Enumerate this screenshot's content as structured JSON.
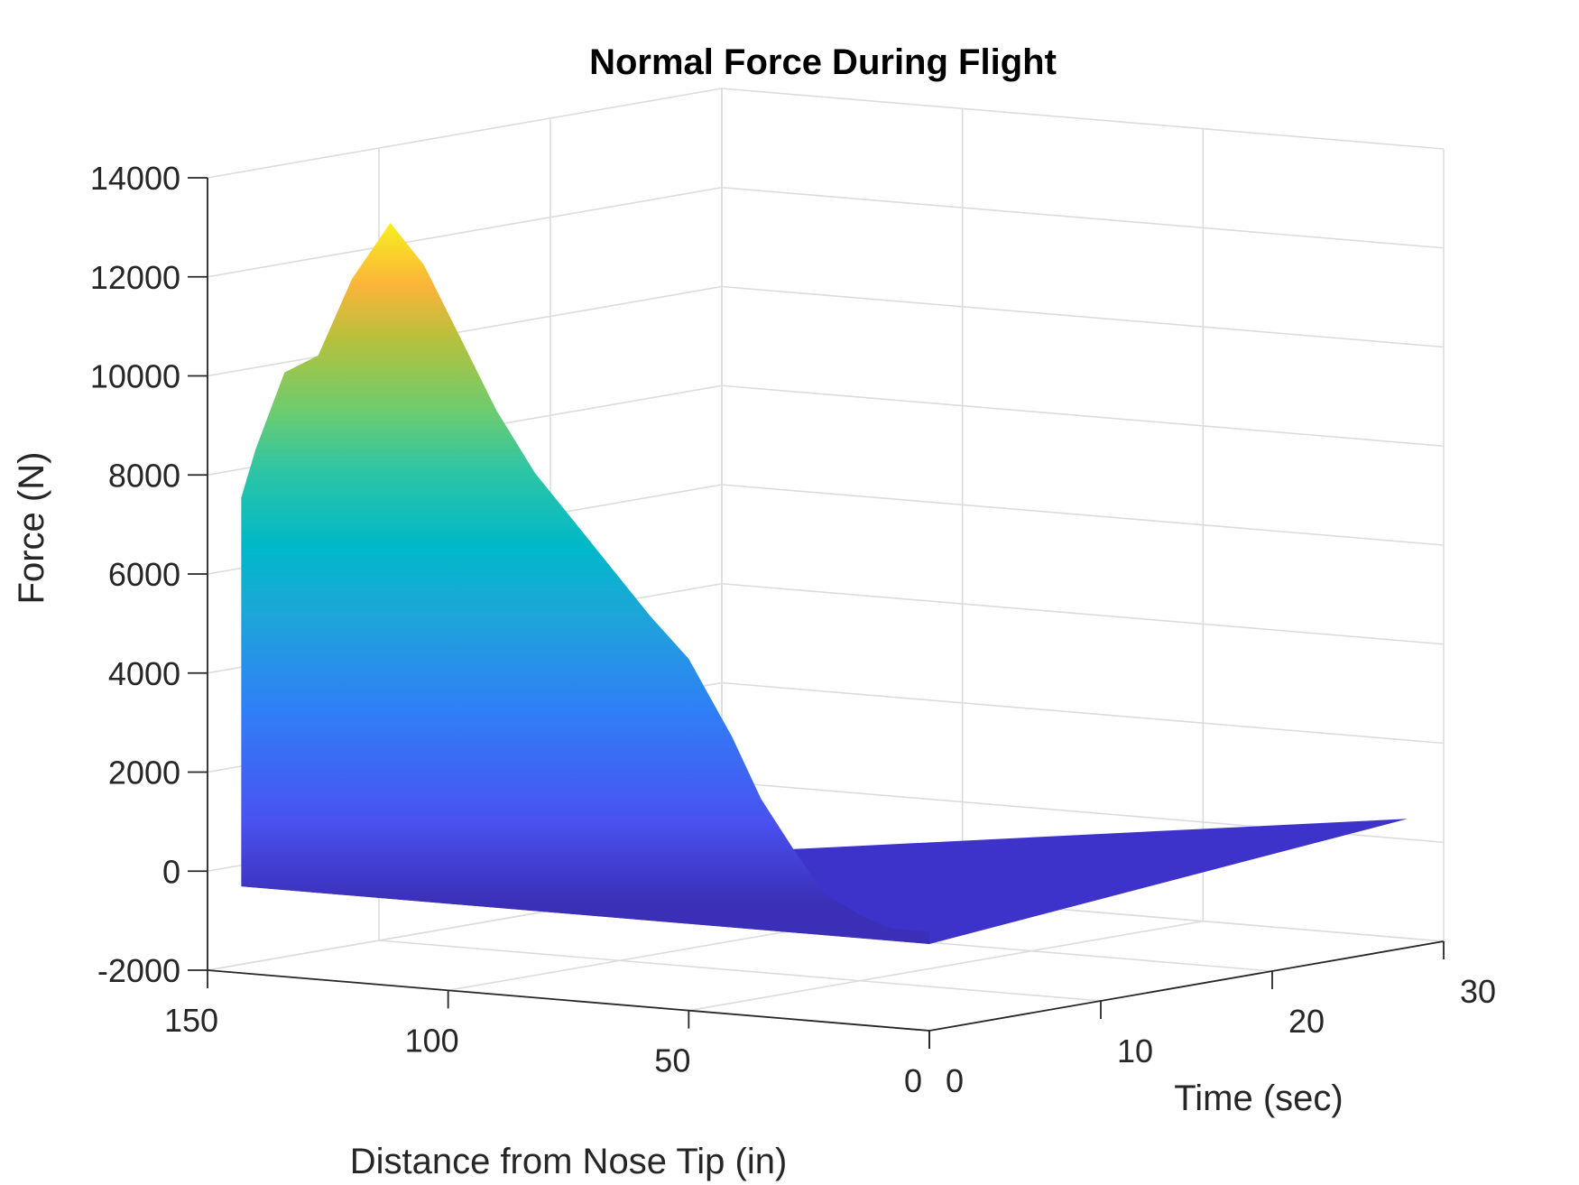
{
  "chart_data": {
    "type": "surface",
    "title": "Normal Force During Flight",
    "xlabel": "Distance from Nose Tip (in)",
    "ylabel": "Time (sec)",
    "zlabel": "Force (N)",
    "x_ticks": [
      "150",
      "100",
      "50",
      "0"
    ],
    "y_ticks": [
      "0",
      "10",
      "20",
      "30"
    ],
    "z_ticks": [
      "14000",
      "12000",
      "10000",
      "8000",
      "6000",
      "4000",
      "2000",
      "0",
      "-2000"
    ],
    "xlim": [
      0,
      150
    ],
    "ylim": [
      0,
      30
    ],
    "zlim": [
      -2000,
      14000
    ],
    "grid": true,
    "colormap": "parula",
    "surface_profile": {
      "distance_in": [
        143,
        140,
        134,
        127,
        120,
        112,
        105,
        98,
        90,
        82,
        74,
        66,
        58,
        50,
        41,
        35,
        28,
        22,
        14,
        8,
        0
      ],
      "force_N": [
        7600,
        8600,
        10200,
        10600,
        12200,
        13400,
        12600,
        11300,
        9800,
        8600,
        7700,
        6800,
        5900,
        5100,
        3600,
        2400,
        1400,
        600,
        200,
        0,
        0
      ],
      "time_sec": 0
    }
  }
}
